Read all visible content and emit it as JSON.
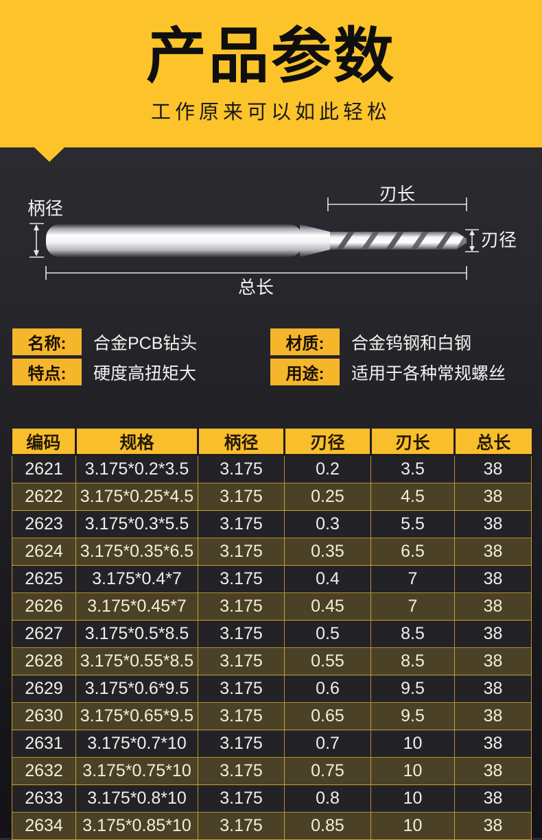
{
  "banner": {
    "title": "产品参数",
    "subtitle": "工作原来可以如此轻松"
  },
  "diagram": {
    "labels": {
      "shank_diameter": "柄径",
      "flute_length": "刃长",
      "flute_diameter": "刃径",
      "total_length": "总长"
    }
  },
  "info": {
    "items": [
      {
        "label": "名称:",
        "value": "合金PCB钻头"
      },
      {
        "label": "特点:",
        "value": "硬度高扭矩大"
      },
      {
        "label": "材质:",
        "value": "合金钨钢和白钢"
      },
      {
        "label": "用途:",
        "value": "适用于各种常规螺丝"
      }
    ]
  },
  "table": {
    "headers": [
      "编码",
      "规格",
      "柄径",
      "刃径",
      "刃长",
      "总长"
    ],
    "rows": [
      [
        "2621",
        "3.175*0.2*3.5",
        "3.175",
        "0.2",
        "3.5",
        "38"
      ],
      [
        "2622",
        "3.175*0.25*4.5",
        "3.175",
        "0.25",
        "4.5",
        "38"
      ],
      [
        "2623",
        "3.175*0.3*5.5",
        "3.175",
        "0.3",
        "5.5",
        "38"
      ],
      [
        "2624",
        "3.175*0.35*6.5",
        "3.175",
        "0.35",
        "6.5",
        "38"
      ],
      [
        "2625",
        "3.175*0.4*7",
        "3.175",
        "0.4",
        "7",
        "38"
      ],
      [
        "2626",
        "3.175*0.45*7",
        "3.175",
        "0.45",
        "7",
        "38"
      ],
      [
        "2627",
        "3.175*0.5*8.5",
        "3.175",
        "0.5",
        "8.5",
        "38"
      ],
      [
        "2628",
        "3.175*0.55*8.5",
        "3.175",
        "0.55",
        "8.5",
        "38"
      ],
      [
        "2629",
        "3.175*0.6*9.5",
        "3.175",
        "0.6",
        "9.5",
        "38"
      ],
      [
        "2630",
        "3.175*0.65*9.5",
        "3.175",
        "0.65",
        "9.5",
        "38"
      ],
      [
        "2631",
        "3.175*0.7*10",
        "3.175",
        "0.7",
        "10",
        "38"
      ],
      [
        "2632",
        "3.175*0.75*10",
        "3.175",
        "0.75",
        "10",
        "38"
      ],
      [
        "2633",
        "3.175*0.8*10",
        "3.175",
        "0.8",
        "10",
        "38"
      ],
      [
        "2634",
        "3.175*0.85*10",
        "3.175",
        "0.85",
        "10",
        "38"
      ]
    ]
  },
  "colors": {
    "banner_yellow": "#FCC32B",
    "badge_yellow": "#F6B62C",
    "header_yellow": "#F9BE2B",
    "row_dark": "#232227",
    "row_olive": "#4A4126",
    "border_gold": "#BB9530",
    "background_dark": "#242328"
  }
}
